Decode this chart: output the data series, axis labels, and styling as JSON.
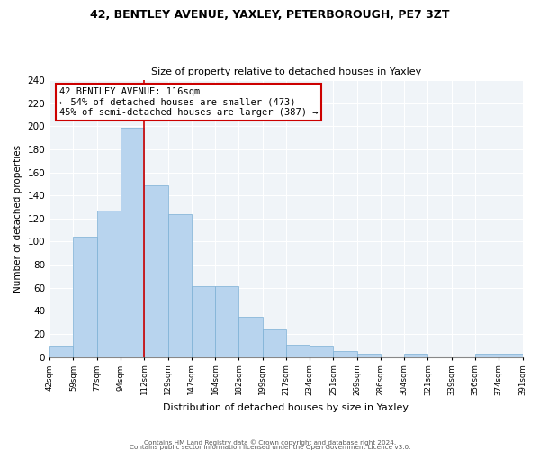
{
  "title": "42, BENTLEY AVENUE, YAXLEY, PETERBOROUGH, PE7 3ZT",
  "subtitle": "Size of property relative to detached houses in Yaxley",
  "xlabel": "Distribution of detached houses by size in Yaxley",
  "ylabel": "Number of detached properties",
  "bar_labels": [
    "42sqm",
    "59sqm",
    "77sqm",
    "94sqm",
    "112sqm",
    "129sqm",
    "147sqm",
    "164sqm",
    "182sqm",
    "199sqm",
    "217sqm",
    "234sqm",
    "251sqm",
    "269sqm",
    "286sqm",
    "304sqm",
    "321sqm",
    "339sqm",
    "356sqm",
    "374sqm",
    "391sqm"
  ],
  "bar_values": [
    10,
    104,
    127,
    199,
    149,
    124,
    61,
    61,
    35,
    24,
    11,
    10,
    5,
    3,
    0,
    3,
    0,
    0,
    3,
    3
  ],
  "bar_color": "#b8d4ee",
  "bar_edge_color": "#7bafd4",
  "vline_color": "#cc0000",
  "annotation_title": "42 BENTLEY AVENUE: 116sqm",
  "annotation_line1": "← 54% of detached houses are smaller (473)",
  "annotation_line2": "45% of semi-detached houses are larger (387) →",
  "annotation_box_color": "white",
  "annotation_box_edge_color": "#cc0000",
  "ylim": [
    0,
    240
  ],
  "yticks": [
    0,
    20,
    40,
    60,
    80,
    100,
    120,
    140,
    160,
    180,
    200,
    220,
    240
  ],
  "footer1": "Contains HM Land Registry data © Crown copyright and database right 2024.",
  "footer2": "Contains public sector information licensed under the Open Government Licence v3.0.",
  "bg_color": "#f0f4f8"
}
